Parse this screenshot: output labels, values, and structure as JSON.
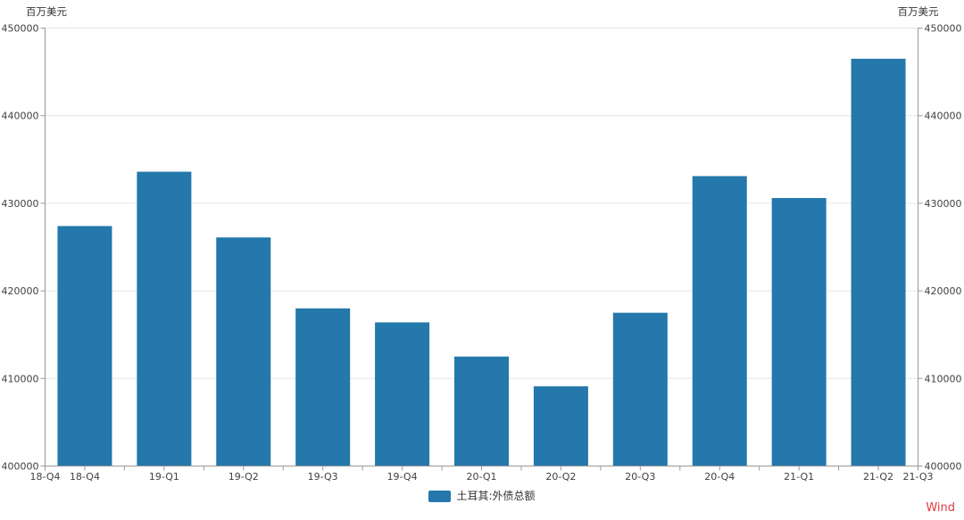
{
  "units": {
    "left": "百万美元",
    "right": "百万美元"
  },
  "legend": {
    "label": "土耳其:外债总额",
    "swatch_color": "#2478ab"
  },
  "watermark": {
    "label": "Wind",
    "color": "#e23b3e"
  },
  "colors": {
    "bar": "#2478ab",
    "grid": "#e6e6e6",
    "axis": "#999999",
    "tick_text": "#404040"
  },
  "chart_data": {
    "type": "bar",
    "title": "",
    "series_name": "土耳其:外债总额",
    "categories": [
      "18-Q4",
      "19-Q1",
      "19-Q2",
      "19-Q3",
      "19-Q4",
      "20-Q1",
      "20-Q2",
      "20-Q3",
      "20-Q4",
      "21-Q1",
      "21-Q2"
    ],
    "values": [
      427400,
      433600,
      426100,
      418000,
      416400,
      412500,
      409100,
      417500,
      433100,
      430600,
      446500
    ],
    "x_edge_labels": [
      "18-Q4",
      "21-Q3"
    ],
    "ylabel_left": "百万美元",
    "ylabel_right": "百万美元",
    "ylim": [
      400000,
      450000
    ],
    "ytick_interval": 10000,
    "yticks": [
      400000,
      410000,
      420000,
      430000,
      440000,
      450000
    ],
    "grid": true,
    "legend_position": "bottom",
    "legend_entries": [
      "土耳其:外债总额"
    ]
  }
}
